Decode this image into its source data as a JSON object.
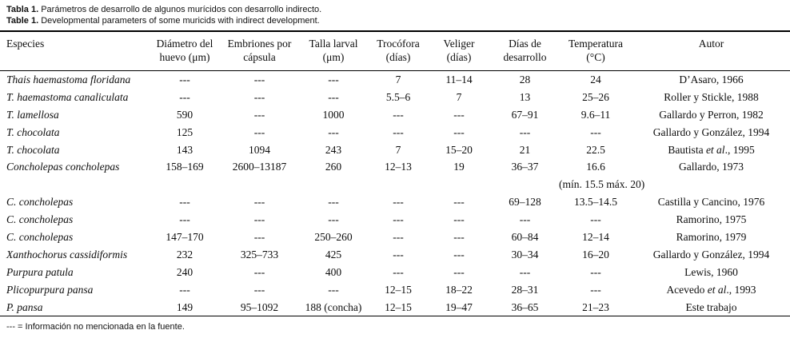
{
  "title": {
    "line1_prefix": "Tabla 1.",
    "line1_text": " Parámetros de desarrollo de algunos murícidos con desarrollo indirecto.",
    "line2_prefix": "Table 1.",
    "line2_text": " Developmental parameters of some muricids with indirect development."
  },
  "table": {
    "columns": [
      {
        "label": "Especies"
      },
      {
        "label": "Diámetro del\nhuevo (μm)"
      },
      {
        "label": "Embriones por\ncápsula"
      },
      {
        "label": "Talla larval\n(μm)"
      },
      {
        "label": "Trocófora\n(días)"
      },
      {
        "label": "Veliger\n(días)"
      },
      {
        "label": "Días de\ndesarrollo"
      },
      {
        "label": "Temperatura\n(°C)"
      },
      {
        "label": "Autor"
      }
    ],
    "rows": [
      [
        "Thais haemastoma floridana",
        "---",
        "---",
        "---",
        "7",
        "11–14",
        "28",
        "24",
        "D’Asaro, 1966"
      ],
      [
        "T. haemastoma canaliculata",
        "---",
        "---",
        "---",
        "5.5–6",
        "7",
        "13",
        "25–26",
        "Roller y Stickle, 1988"
      ],
      [
        "T. lamellosa",
        "590",
        "---",
        "1000",
        "---",
        "---",
        "67–91",
        "9.6–11",
        "Gallardo y Perron, 1982"
      ],
      [
        "T. chocolata",
        "125",
        "---",
        "---",
        "---",
        "---",
        "---",
        "---",
        "Gallardo y González, 1994"
      ],
      [
        "T. chocolata",
        "143",
        "1094",
        "243",
        "7",
        "15–20",
        "21",
        "22.5",
        "Bautista *et al*., 1995"
      ],
      [
        "Concholepas concholepas",
        "158–169",
        "2600–13187",
        "260",
        "12–13",
        "19",
        "36–37",
        "16.6",
        "Gallardo, 1973"
      ],
      [
        "",
        "",
        "",
        "",
        "",
        "",
        "",
        "(mín. 15.5 máx. 20)",
        ""
      ],
      [
        "C. concholepas",
        "---",
        "---",
        "---",
        "---",
        "---",
        "69–128",
        "13.5–14.5",
        "Castilla y Cancino, 1976"
      ],
      [
        "C. concholepas",
        "---",
        "---",
        "---",
        "---",
        "---",
        "---",
        "---",
        "Ramorino, 1975"
      ],
      [
        "C. concholepas",
        "147–170",
        "---",
        "250–260",
        "---",
        "---",
        "60–84",
        "12–14",
        "Ramorino, 1979"
      ],
      [
        "Xanthochorus cassidiformis",
        "232",
        "325–733",
        "425",
        "---",
        "---",
        "30–34",
        "16–20",
        "Gallardo y González, 1994"
      ],
      [
        "Purpura patula",
        "240",
        "---",
        "400",
        "---",
        "---",
        "---",
        "---",
        "Lewis, 1960"
      ],
      [
        "Plicopurpura pansa",
        "---",
        "---",
        "---",
        "12–15",
        "18–22",
        "28–31",
        "---",
        "Acevedo *et al*., 1993"
      ],
      [
        "P. pansa",
        "149",
        "95–1092",
        "188 (concha)",
        "12–15",
        "19–47",
        "36–65",
        "21–23",
        "Este trabajo"
      ]
    ]
  },
  "footnote": "--- = Información no mencionada en la fuente."
}
